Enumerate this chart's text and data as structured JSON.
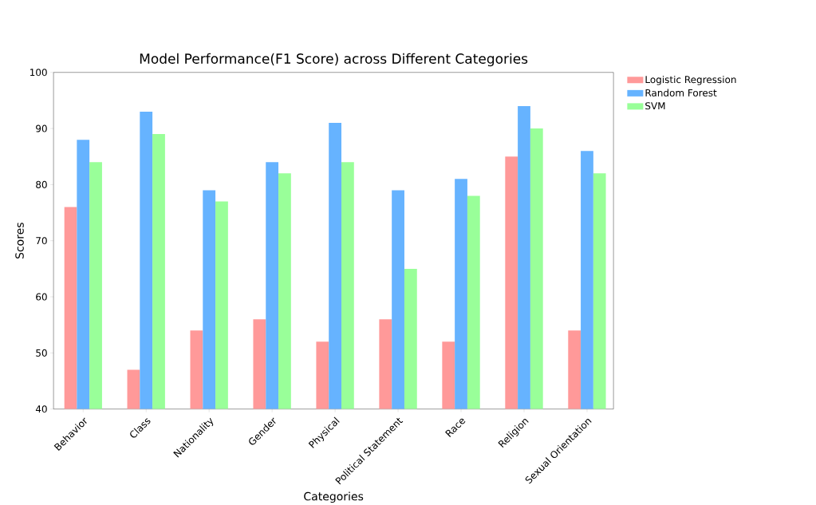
{
  "chart_data": {
    "type": "bar",
    "title": "Model Performance(F1 Score) across Different Categories",
    "xlabel": "Categories",
    "ylabel": "Scores",
    "categories": [
      "Behavior",
      "Class",
      "Nationality",
      "Gender",
      "Physical",
      "Political Statement",
      "Race",
      "Religion",
      "Sexual Orientation"
    ],
    "series": [
      {
        "name": "Logistic Regression",
        "color": "#ff9999",
        "values": [
          76,
          47,
          54,
          56,
          52,
          56,
          52,
          85,
          54
        ]
      },
      {
        "name": "Random Forest",
        "color": "#66b3ff",
        "values": [
          88,
          93,
          79,
          84,
          91,
          79,
          81,
          94,
          86
        ]
      },
      {
        "name": "SVM",
        "color": "#99ff99",
        "values": [
          84,
          89,
          77,
          82,
          84,
          65,
          78,
          90,
          82
        ]
      }
    ],
    "ylim": [
      40,
      100
    ],
    "yticks": [
      40,
      50,
      60,
      70,
      80,
      90,
      100
    ],
    "legend": "top right"
  }
}
